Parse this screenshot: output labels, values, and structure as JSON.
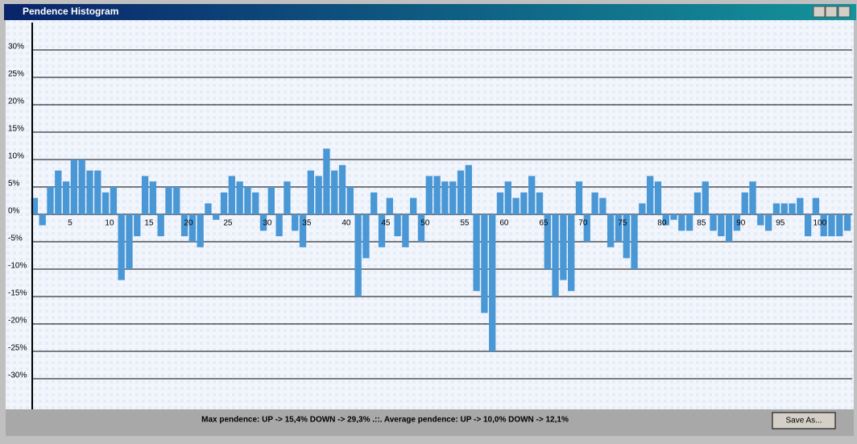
{
  "window": {
    "title": "Pendence Histogram",
    "button": "Save As..."
  },
  "footer": "Max pendence: UP -> 15,4% DOWN -> 29,3% .::. Average pendence: UP -> 10,0% DOWN -> 12,1%",
  "chart_data": {
    "type": "bar",
    "color": "#4a97d6",
    "grid": true,
    "x": [
      0.5,
      1.5,
      2.5,
      3.5,
      4.5,
      5.5,
      6.5,
      7.5,
      8.5,
      9.5,
      10.5,
      11.5,
      12.5,
      13.5,
      14.5,
      15.5,
      16.5,
      17.5,
      18.5,
      19.5,
      20.5,
      21.5,
      22.5,
      23.5,
      24.5,
      25.5,
      26.5,
      27.5,
      28.5,
      29.5,
      30.5,
      31.5,
      32.5,
      33.5,
      34.5,
      35.5,
      36.5,
      37.5,
      38.5,
      39.5,
      40.5,
      41.5,
      42.5,
      43.5,
      44.5,
      45.5,
      46.5,
      47.5,
      48.5,
      49.5,
      50.5,
      51.5,
      52.5,
      53.5,
      54.5,
      55.5,
      56.5,
      57.5,
      58.5,
      59.5,
      60.5,
      61.5,
      62.5,
      63.5,
      64.5,
      65.5,
      66.5,
      67.5,
      68.5,
      69.5,
      70.5,
      71.5,
      72.5,
      73.5,
      74.5,
      75.5,
      76.5,
      77.5,
      78.5,
      79.5,
      80.5,
      81.5,
      82.5,
      83.5,
      84.5,
      85.5,
      86.5,
      87.5,
      88.5,
      89.5,
      90.5,
      91.5,
      92.5,
      93.5,
      94.5,
      95.5,
      96.5,
      97.5,
      98.5,
      99.5,
      100.5,
      101.5,
      102.5,
      103.5
    ],
    "values": [
      3,
      -2,
      5,
      8,
      6,
      10,
      10,
      8,
      8,
      4,
      5,
      -12,
      -10,
      -4,
      7,
      6,
      -4,
      5,
      5,
      -4,
      -5,
      -6,
      2,
      -1,
      4,
      7,
      6,
      5,
      4,
      -3,
      5,
      -4,
      6,
      -3,
      -6,
      8,
      7,
      12,
      8,
      9,
      5,
      -15,
      -8,
      4,
      -6,
      3,
      -4,
      -6,
      3,
      -5,
      7,
      7,
      6,
      6,
      8,
      9,
      -14,
      -18,
      -25,
      4,
      6,
      3,
      4,
      7,
      4,
      -10,
      -15,
      -12,
      -14,
      6,
      -5,
      4,
      3,
      -6,
      -5,
      -8,
      -10,
      2,
      7,
      6,
      -2,
      -1,
      -3,
      -3,
      4,
      6,
      -3,
      -4,
      -5,
      -3,
      4,
      6,
      -2,
      -3,
      2,
      2,
      2,
      3,
      -4,
      3,
      -4,
      -4,
      -4,
      -3
    ],
    "xlim": [
      0,
      104
    ],
    "xticks": [
      5,
      10,
      15,
      20,
      25,
      30,
      35,
      40,
      45,
      50,
      55,
      60,
      65,
      70,
      75,
      80,
      85,
      90,
      95,
      100
    ],
    "ylim": [
      -35,
      35
    ],
    "yticks": [
      {
        "value": -30,
        "label": "-30%"
      },
      {
        "value": -25,
        "label": "-25%"
      },
      {
        "value": -20,
        "label": "-20%"
      },
      {
        "value": -15,
        "label": "-15%"
      },
      {
        "value": -10,
        "label": "-10%"
      },
      {
        "value": -5,
        "label": "-5%"
      },
      {
        "value": 0,
        "label": "0%"
      },
      {
        "value": 5,
        "label": "5%"
      },
      {
        "value": 10,
        "label": "10%"
      },
      {
        "value": 15,
        "label": "15%"
      },
      {
        "value": 20,
        "label": "20%"
      },
      {
        "value": 25,
        "label": "25%"
      },
      {
        "value": 30,
        "label": "30%"
      }
    ]
  }
}
